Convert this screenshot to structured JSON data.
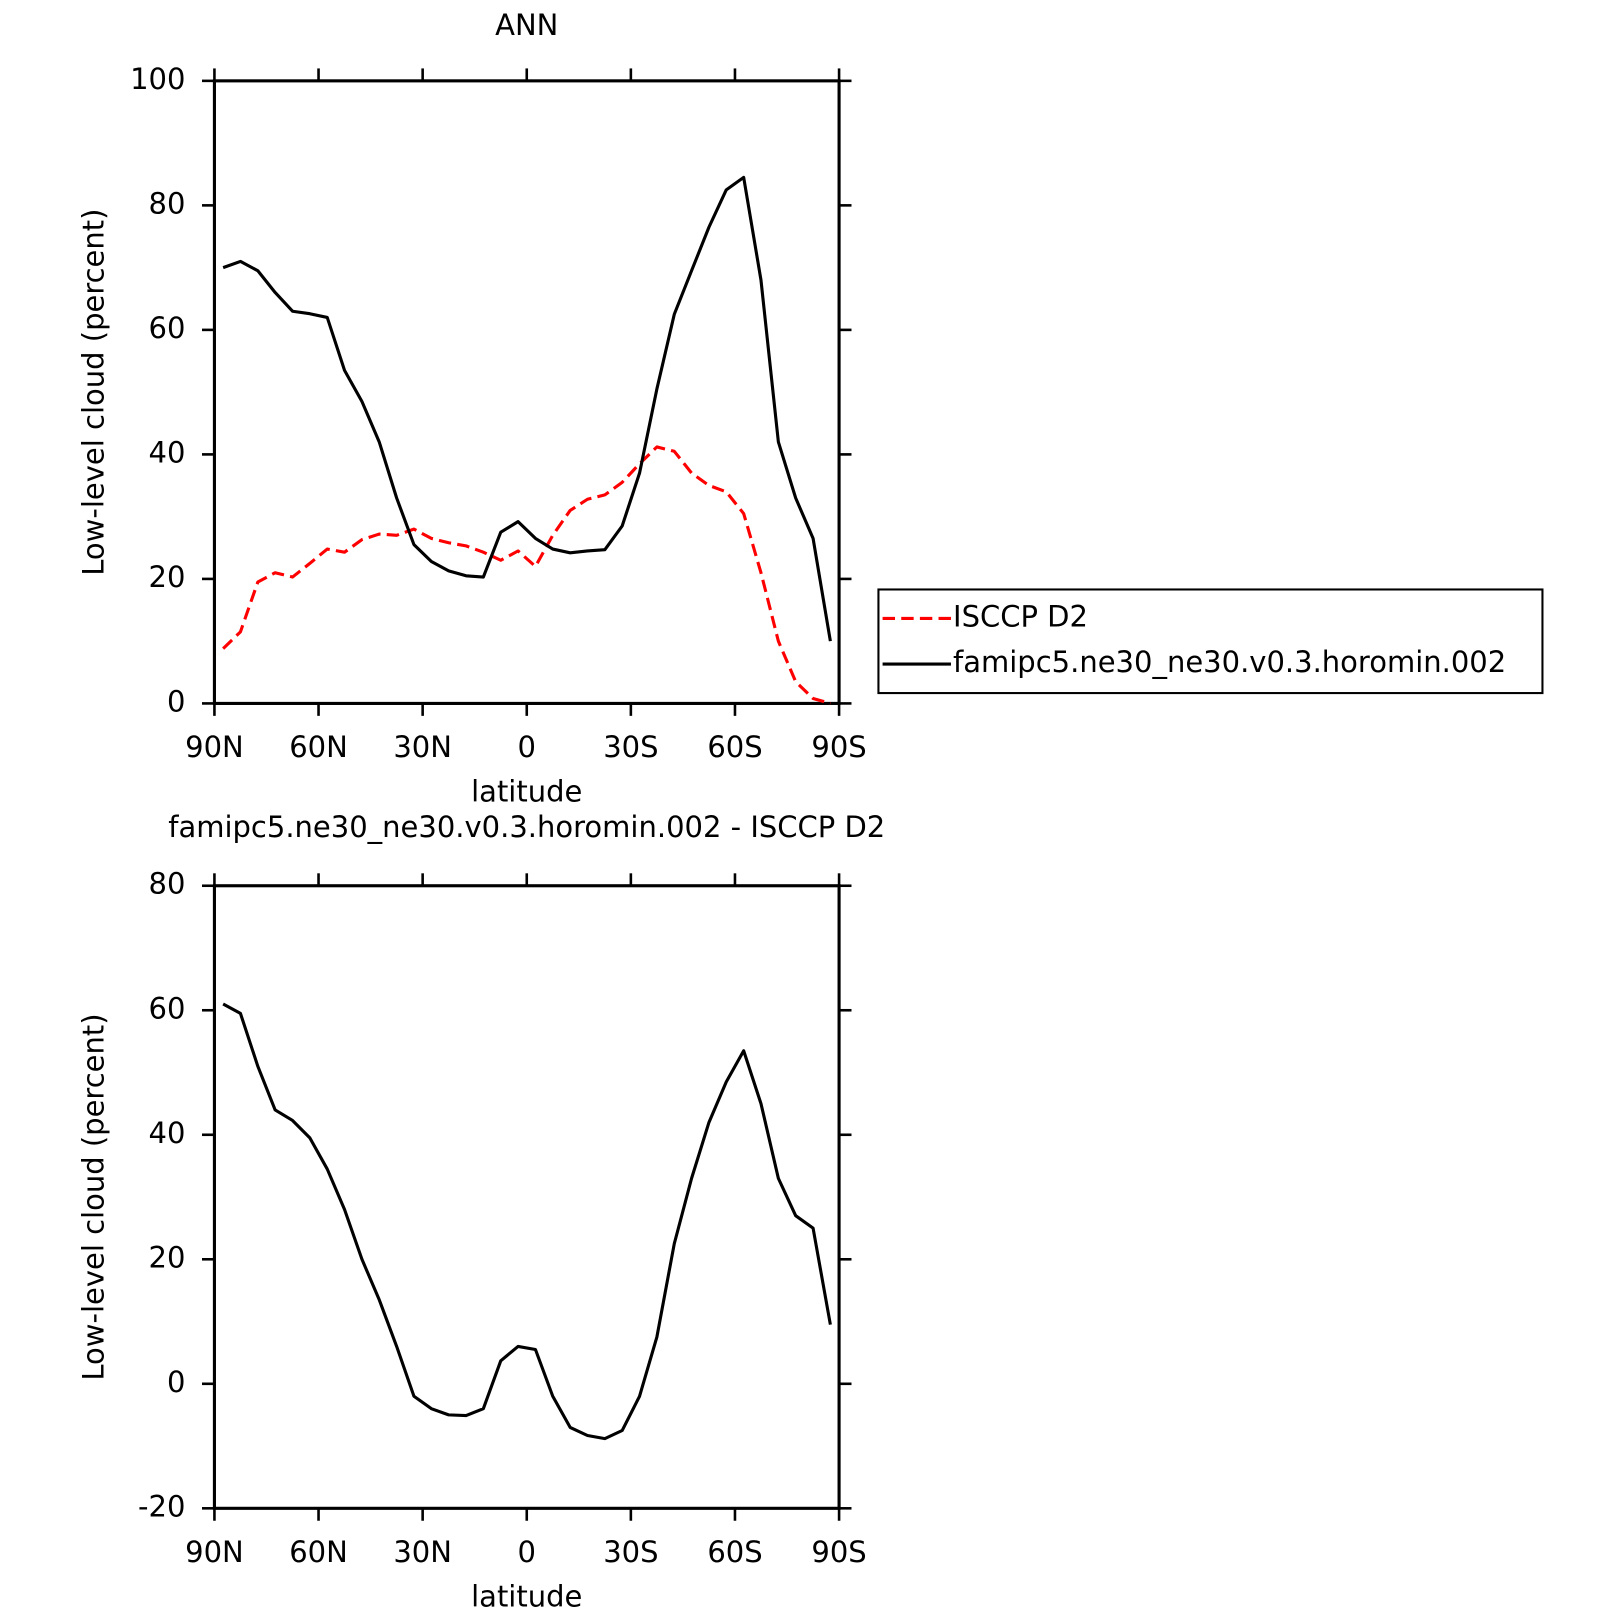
{
  "chart_data": [
    {
      "type": "line",
      "title": "ANN",
      "x_label": "latitude",
      "y_label": "Low-level cloud (percent)",
      "x": [
        87.5,
        82.5,
        77.5,
        72.5,
        67.5,
        62.5,
        57.5,
        52.5,
        47.5,
        42.5,
        37.5,
        32.5,
        27.5,
        22.5,
        17.5,
        12.5,
        7.5,
        2.5,
        -2.5,
        -7.5,
        -12.5,
        -17.5,
        -22.5,
        -27.5,
        -32.5,
        -37.5,
        -42.5,
        -47.5,
        -52.5,
        -57.5,
        -62.5,
        -67.5,
        -72.5,
        -77.5,
        -82.5,
        -87.5
      ],
      "series": [
        {
          "name": "ISCCP D2",
          "color": "#ff0000",
          "line_style": "dashed",
          "values": [
            8.8,
            11.5,
            19.5,
            21,
            20.3,
            22.5,
            24.8,
            24.3,
            26.3,
            27.2,
            27,
            28,
            26.5,
            25.8,
            25.3,
            24.3,
            23,
            24.5,
            22,
            27,
            31,
            32.8,
            33.5,
            35.5,
            38.5,
            41.2,
            40.5,
            37,
            35,
            34,
            30.5,
            21,
            10,
            3.5,
            0.8,
            0
          ]
        },
        {
          "name": "famipc5.ne30_ne30.v0.3.horomin.002",
          "color": "#000000",
          "line_style": "solid",
          "values": [
            70,
            71,
            69.5,
            66,
            63,
            62.6,
            62,
            53.5,
            48.5,
            42,
            33,
            25.5,
            22.8,
            21.3,
            20.5,
            20.3,
            27.5,
            29.2,
            26.5,
            24.8,
            24.2,
            24.5,
            24.7,
            28.5,
            37,
            50.5,
            62.5,
            69.5,
            76.5,
            82.5,
            84.5,
            68,
            42,
            33,
            26.5,
            10
          ]
        }
      ],
      "xlim": [
        90,
        -90
      ],
      "xticks": [
        {
          "value": 90,
          "label": "90N"
        },
        {
          "value": 60,
          "label": "60N"
        },
        {
          "value": 30,
          "label": "30N"
        },
        0,
        {
          "value": -30,
          "label": "30S"
        },
        {
          "value": -60,
          "label": "60S"
        },
        {
          "value": -90,
          "label": "90S"
        }
      ],
      "ylim": [
        0,
        100
      ],
      "yticks": [
        0,
        20,
        40,
        60,
        80,
        100
      ],
      "legend": "right"
    },
    {
      "type": "line",
      "title": "famipc5.ne30_ne30.v0.3.horomin.002 - ISCCP D2",
      "x_label": "latitude",
      "y_label": "Low-level cloud (percent)",
      "x": [
        87.5,
        82.5,
        77.5,
        72.5,
        67.5,
        62.5,
        57.5,
        52.5,
        47.5,
        42.5,
        37.5,
        32.5,
        27.5,
        22.5,
        17.5,
        12.5,
        7.5,
        2.5,
        -2.5,
        -7.5,
        -12.5,
        -17.5,
        -22.5,
        -27.5,
        -32.5,
        -37.5,
        -42.5,
        -47.5,
        -52.5,
        -57.5,
        -62.5,
        -67.5,
        -72.5,
        -77.5,
        -82.5,
        -87.5
      ],
      "series": [
        {
          "color": "#000000",
          "line_style": "solid",
          "values": [
            61,
            59.5,
            51,
            44,
            42.3,
            39.5,
            34.5,
            28,
            20,
            13.5,
            6,
            -2,
            -4,
            -5,
            -5.1,
            -4,
            3.7,
            6,
            5.5,
            -2,
            -7,
            -8.3,
            -8.8,
            -7.5,
            -2,
            7.5,
            22.5,
            33,
            42,
            48.5,
            53.5,
            45,
            33,
            27,
            25,
            9.5
          ]
        }
      ],
      "xlim": [
        90,
        -90
      ],
      "xticks": [
        {
          "value": 90,
          "label": "90N"
        },
        {
          "value": 60,
          "label": "60N"
        },
        {
          "value": 30,
          "label": "30N"
        },
        0,
        {
          "value": -30,
          "label": "30S"
        },
        {
          "value": -60,
          "label": "60S"
        },
        {
          "value": -90,
          "label": "90S"
        }
      ],
      "ylim": [
        -20,
        80
      ],
      "yticks": [
        -20,
        0,
        20,
        40,
        60,
        80
      ]
    }
  ]
}
